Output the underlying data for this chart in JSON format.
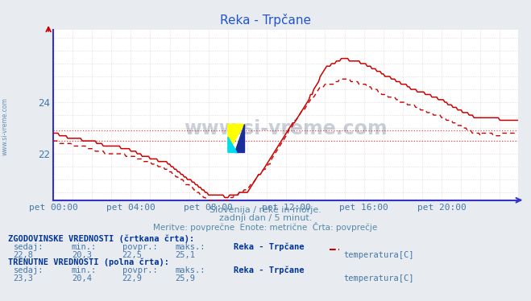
{
  "title": "Reka - Trpčane",
  "bg_color": "#e8ecf0",
  "plot_bg_color": "#ffffff",
  "line_color": "#cc0000",
  "grid_color": "#dde8ee",
  "axis_color": "#3333cc",
  "text_color": "#4477aa",
  "title_color": "#2255cc",
  "subtitle_color": "#5588aa",
  "label_color": "#2255cc",
  "subtitle_line1": "Slovenija / reke in morje.",
  "subtitle_line2": "zadnji dan / 5 minut.",
  "subtitle_line3": "Meritve: povprečne  Enote: metrične  Črta: povprečje",
  "xlabel_ticks": [
    "pet 00:00",
    "pet 04:00",
    "pet 08:00",
    "pet 12:00",
    "pet 16:00",
    "pet 20:00"
  ],
  "xtick_pos": [
    0,
    48,
    96,
    144,
    192,
    240
  ],
  "yticks": [
    22,
    24
  ],
  "ylim": [
    20.2,
    26.8
  ],
  "xlim": [
    0,
    287
  ],
  "hlines": [
    22.9,
    22.5
  ],
  "watermark": "www.si-vreme.com",
  "hist_label_header": "ZGODOVINSKE VREDNOSTI (črtkana črta):",
  "hist_cols": [
    "sedaj:",
    "min.:",
    "povpr.:",
    "maks.:"
  ],
  "hist_vals": [
    "22,8",
    "20,3",
    "22,5",
    "25,1"
  ],
  "hist_series": "Reka - Trpčane",
  "hist_measure": "temperatura[C]",
  "curr_label_header": "TRENUTNE VREDNOSTI (polna črta):",
  "curr_cols": [
    "sedaj:",
    "min.:",
    "povpr.:",
    "maks.:"
  ],
  "curr_vals": [
    "23,3",
    "20,4",
    "22,9",
    "25,9"
  ],
  "curr_series": "Reka - Trpčane",
  "curr_measure": "temperatura[C]",
  "n_points": 288
}
